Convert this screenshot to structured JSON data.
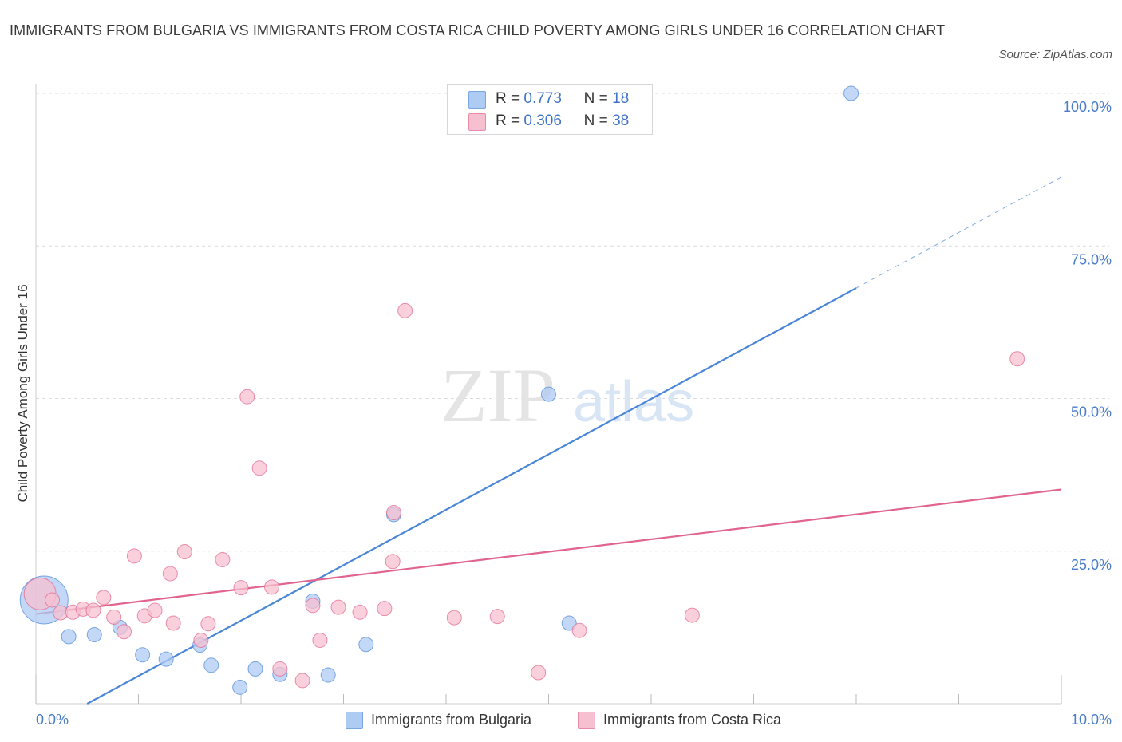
{
  "title": "IMMIGRANTS FROM BULGARIA VS IMMIGRANTS FROM COSTA RICA CHILD POVERTY AMONG GIRLS UNDER 16 CORRELATION CHART",
  "source": "Source: ZipAtlas.com",
  "watermark": {
    "zip": "ZIP",
    "atlas": "atlas"
  },
  "legend": {
    "r_label": "R =",
    "n_label": "N =",
    "rows": [
      {
        "r": "0.773",
        "n": "18",
        "color": "#aecbf3",
        "border": "#7aa5e0"
      },
      {
        "r": "0.306",
        "n": "38",
        "color": "#f7c0d0",
        "border": "#e98aa8"
      }
    ]
  },
  "chart_data": {
    "type": "scatter",
    "title": "IMMIGRANTS FROM BULGARIA VS IMMIGRANTS FROM COSTA RICA CHILD POVERTY AMONG GIRLS UNDER 16 CORRELATION CHART",
    "xlabel": "",
    "ylabel": "Child Poverty Among Girls Under 16",
    "xlim": [
      0,
      10
    ],
    "ylim": [
      0,
      100
    ],
    "x_tick_labels": [
      "0.0%",
      "10.0%"
    ],
    "y_ticks": [
      25,
      50,
      75,
      100
    ],
    "y_tick_labels": [
      "25.0%",
      "50.0%",
      "75.0%",
      "100.0%"
    ],
    "grid": true,
    "legend_position": "bottom",
    "series": [
      {
        "name": "Immigrants from Bulgaria",
        "color": "#4a86d8",
        "fill": "#aecbf3",
        "trend": {
          "x": [
            0.5,
            8.0
          ],
          "y": [
            0,
            68.1
          ],
          "dashed_to": [
            10.0,
            86.3
          ]
        },
        "points": [
          [
            0.08,
            17.0
          ],
          [
            0.32,
            11.0
          ],
          [
            0.57,
            11.3
          ],
          [
            0.82,
            12.5
          ],
          [
            1.04,
            8.0
          ],
          [
            1.27,
            7.3
          ],
          [
            1.6,
            9.6
          ],
          [
            1.71,
            6.3
          ],
          [
            1.99,
            2.7
          ],
          [
            2.14,
            5.7
          ],
          [
            2.38,
            4.8
          ],
          [
            2.7,
            16.8
          ],
          [
            2.85,
            4.7
          ],
          [
            3.22,
            9.7
          ],
          [
            3.49,
            31.0
          ],
          [
            5.0,
            50.7
          ],
          [
            5.2,
            13.2
          ],
          [
            7.95,
            100.0
          ]
        ],
        "sizes": [
          30,
          9,
          9,
          9,
          9,
          9,
          9,
          9,
          9,
          9,
          9,
          9,
          9,
          9,
          9,
          9,
          9,
          9
        ]
      },
      {
        "name": "Immigrants from Costa Rica",
        "color": "#e0648e",
        "fill": "#f7c0d0",
        "trend": {
          "x": [
            0.0,
            10.0
          ],
          "y": [
            14.7,
            35.1
          ]
        },
        "points": [
          [
            0.04,
            18.0
          ],
          [
            0.16,
            17.0
          ],
          [
            0.24,
            14.9
          ],
          [
            0.36,
            15.0
          ],
          [
            0.46,
            15.5
          ],
          [
            0.56,
            15.3
          ],
          [
            0.66,
            17.4
          ],
          [
            0.76,
            14.2
          ],
          [
            0.86,
            11.8
          ],
          [
            0.96,
            24.2
          ],
          [
            1.06,
            14.4
          ],
          [
            1.16,
            15.3
          ],
          [
            1.31,
            21.3
          ],
          [
            1.34,
            13.2
          ],
          [
            1.45,
            24.9
          ],
          [
            1.68,
            13.1
          ],
          [
            1.61,
            10.4
          ],
          [
            1.82,
            23.6
          ],
          [
            2.0,
            19.0
          ],
          [
            2.06,
            50.3
          ],
          [
            2.18,
            38.6
          ],
          [
            2.3,
            19.1
          ],
          [
            2.38,
            5.7
          ],
          [
            2.6,
            3.8
          ],
          [
            2.7,
            16.1
          ],
          [
            2.77,
            10.4
          ],
          [
            2.95,
            15.8
          ],
          [
            3.16,
            15.0
          ],
          [
            3.4,
            15.6
          ],
          [
            3.49,
            31.3
          ],
          [
            3.48,
            23.3
          ],
          [
            3.6,
            64.4
          ],
          [
            4.08,
            14.1
          ],
          [
            4.5,
            14.3
          ],
          [
            4.9,
            5.1
          ],
          [
            5.3,
            12.0
          ],
          [
            6.4,
            14.5
          ],
          [
            9.57,
            56.5
          ]
        ],
        "sizes": [
          20,
          9,
          9,
          9,
          9,
          9,
          9,
          9,
          9,
          9,
          9,
          9,
          9,
          9,
          9,
          9,
          9,
          9,
          9,
          9,
          9,
          9,
          9,
          9,
          9,
          9,
          9,
          9,
          9,
          9,
          9,
          9,
          9,
          9,
          9,
          9,
          9,
          9
        ]
      }
    ]
  }
}
